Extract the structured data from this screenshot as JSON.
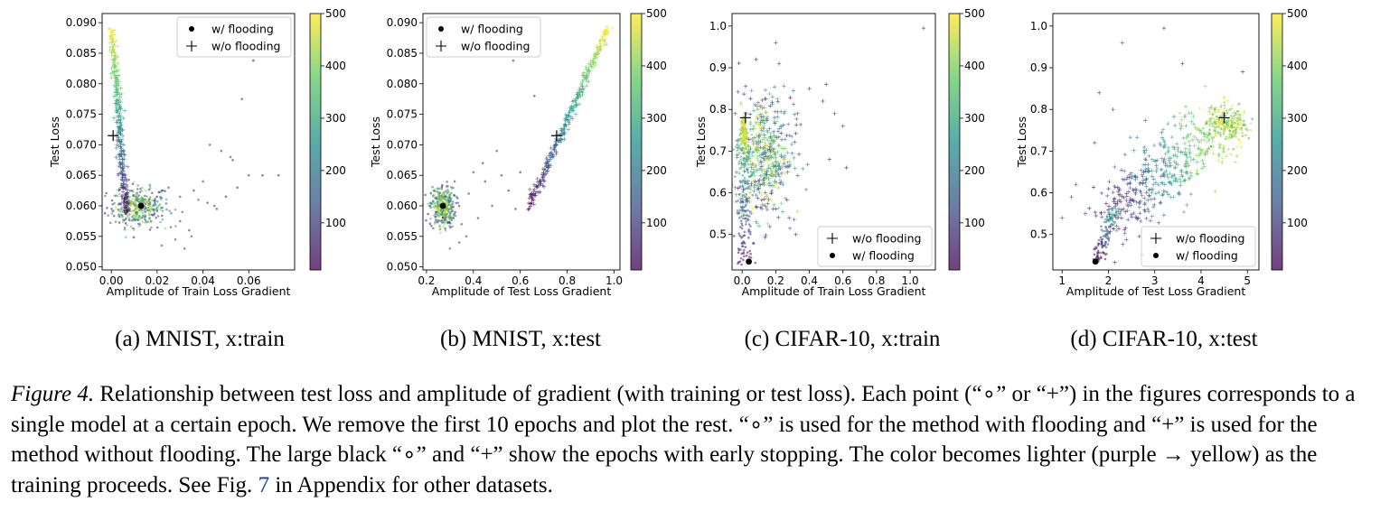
{
  "figure": {
    "caption": {
      "label": "Figure 4.",
      "text_1": " Relationship between test loss and amplitude of gradient (with training or test loss). Each point (“∘” or “+”) in the figures corresponds to a single model at a certain epoch. We remove the first 10 epochs and plot the rest. “∘” is used for the method with flooding and “+” is used for the method without flooding. The large black “∘” and “+” show the epochs with early stopping. The color becomes lighter (purple → yellow) as the training proceeds. See Fig. ",
      "ref": "7",
      "text_2": " in Appendix for other datasets."
    },
    "colormap": {
      "name": "viridis",
      "stops": [
        "#440154",
        "#3b528b",
        "#21918c",
        "#5ec962",
        "#fde725"
      ],
      "alpha": 0.55,
      "early_stop_color": "#000000"
    }
  },
  "chart_data": [
    {
      "type": "scatter",
      "subcaption": "(a) MNIST, x:train",
      "xlabel": "Amplitude of Train Loss Gradient",
      "ylabel": "Test Loss",
      "xlim": [
        -0.004,
        0.08
      ],
      "ylim": [
        0.0495,
        0.0915
      ],
      "xticks": [
        0.0,
        0.02,
        0.04,
        0.06
      ],
      "xtick_labels": [
        "0.00",
        "0.02",
        "0.04",
        "0.06"
      ],
      "yticks": [
        0.05,
        0.055,
        0.06,
        0.065,
        0.07,
        0.075,
        0.08,
        0.085,
        0.09
      ],
      "ytick_labels": [
        "0.050",
        "0.055",
        "0.060",
        "0.065",
        "0.070",
        "0.075",
        "0.080",
        "0.085",
        "0.090"
      ],
      "colorbar": {
        "ticks": [
          100,
          200,
          300,
          400,
          500
        ],
        "tick_labels": [
          "100",
          "200",
          "300",
          "400",
          "500"
        ],
        "range": [
          10,
          500
        ]
      },
      "legend": {
        "location": "upper right",
        "entries": [
          {
            "marker": "dot",
            "label": "w/ flooding"
          },
          {
            "marker": "plus",
            "label": "w/o flooding"
          }
        ]
      },
      "grid": false,
      "series": [
        {
          "name": "w/ flooding",
          "marker": "dot",
          "clusters": [
            {
              "epochs": [
                10,
                500
              ],
              "center": [
                0.012,
                0.0598
              ],
              "spread": [
                0.006,
                0.0016
              ],
              "count": 380
            }
          ],
          "paths": [],
          "points": [
            [
              0.03,
              0.0575,
              80
            ],
            [
              0.034,
              0.056,
              60
            ],
            [
              0.038,
              0.061,
              90
            ],
            [
              0.025,
              0.063,
              70
            ],
            [
              0.045,
              0.06,
              50
            ],
            [
              0.05,
              0.0615,
              40
            ],
            [
              0.055,
              0.063,
              30
            ],
            [
              0.06,
              0.065,
              45
            ],
            [
              0.066,
              0.065,
              35
            ],
            [
              0.073,
              0.065,
              25
            ],
            [
              0.048,
              0.069,
              55
            ],
            [
              0.052,
              0.068,
              65
            ],
            [
              0.043,
              0.07,
              40
            ],
            [
              0.057,
              0.0775,
              30
            ],
            [
              0.062,
              0.0838,
              20
            ],
            [
              0.04,
              0.064,
              75
            ],
            [
              0.035,
              0.055,
              85
            ],
            [
              0.028,
              0.0545,
              95
            ],
            [
              0.032,
              0.053,
              70
            ],
            [
              0.022,
              0.0535,
              110
            ],
            [
              0.026,
              0.0565,
              120
            ],
            [
              0.031,
              0.059,
              100
            ],
            [
              0.036,
              0.0625,
              60
            ],
            [
              0.046,
              0.0595,
              45
            ],
            [
              0.053,
              0.0675,
              35
            ],
            [
              0.042,
              0.0605,
              50
            ],
            [
              0.03,
              0.0615,
              105
            ]
          ],
          "early_stop": [
            0.013,
            0.06
          ]
        },
        {
          "name": "w/o flooding",
          "marker": "plus",
          "clusters": [],
          "paths": [
            {
              "epochs": [
                10,
                500
              ],
              "from": [
                0.0065,
                0.0588
              ],
              "to": [
                0.0002,
                0.0892
              ],
              "jitter": [
                0.0009,
                0.0002
              ],
              "count": 290
            }
          ],
          "points": [],
          "early_stop": [
            0.0008,
            0.0715
          ]
        }
      ]
    },
    {
      "type": "scatter",
      "subcaption": "(b) MNIST, x:test",
      "xlabel": "Amplitude of Test Loss Gradient",
      "ylabel": "Test Loss",
      "xlim": [
        0.185,
        1.025
      ],
      "ylim": [
        0.0495,
        0.0915
      ],
      "xticks": [
        0.2,
        0.4,
        0.6,
        0.8,
        1.0
      ],
      "xtick_labels": [
        "0.2",
        "0.4",
        "0.6",
        "0.8",
        "1.0"
      ],
      "yticks": [
        0.05,
        0.055,
        0.06,
        0.065,
        0.07,
        0.075,
        0.08,
        0.085,
        0.09
      ],
      "ytick_labels": [
        "0.050",
        "0.055",
        "0.060",
        "0.065",
        "0.070",
        "0.075",
        "0.080",
        "0.085",
        "0.090"
      ],
      "colorbar": {
        "ticks": [
          100,
          200,
          300,
          400,
          500
        ],
        "tick_labels": [
          "100",
          "200",
          "300",
          "400",
          "500"
        ],
        "range": [
          10,
          500
        ]
      },
      "legend": {
        "location": "upper left",
        "entries": [
          {
            "marker": "dot",
            "label": "w/ flooding"
          },
          {
            "marker": "plus",
            "label": "w/o flooding"
          }
        ]
      },
      "grid": false,
      "series": [
        {
          "name": "w/ flooding",
          "marker": "dot",
          "clusters": [
            {
              "epochs": [
                10,
                500
              ],
              "center": [
                0.27,
                0.0598
              ],
              "spread": [
                0.025,
                0.0016
              ],
              "count": 380
            }
          ],
          "paths": [],
          "points": [
            [
              0.35,
              0.057,
              80
            ],
            [
              0.38,
              0.062,
              70
            ],
            [
              0.42,
              0.058,
              60
            ],
            [
              0.45,
              0.064,
              50
            ],
            [
              0.48,
              0.06,
              55
            ],
            [
              0.52,
              0.065,
              40
            ],
            [
              0.55,
              0.0625,
              45
            ],
            [
              0.6,
              0.0655,
              35
            ],
            [
              0.44,
              0.067,
              50
            ],
            [
              0.4,
              0.0655,
              60
            ],
            [
              0.57,
              0.0838,
              25
            ],
            [
              0.66,
              0.078,
              30
            ],
            [
              0.34,
              0.054,
              90
            ],
            [
              0.3,
              0.053,
              110
            ],
            [
              0.37,
              0.055,
              85
            ],
            [
              0.32,
              0.064,
              95
            ],
            [
              0.5,
              0.069,
              45
            ],
            [
              0.58,
              0.0595,
              40
            ]
          ],
          "early_stop": [
            0.27,
            0.06
          ]
        },
        {
          "name": "w/o flooding",
          "marker": "plus",
          "clusters": [],
          "paths": [
            {
              "epochs": [
                10,
                500
              ],
              "from": [
                0.64,
                0.06
              ],
              "to": [
                0.975,
                0.0892
              ],
              "jitter": [
                0.008,
                0.00035
              ],
              "count": 300
            }
          ],
          "points": [],
          "early_stop": [
            0.755,
            0.0715
          ]
        }
      ]
    },
    {
      "type": "scatter",
      "subcaption": "(c) CIFAR-10, x:train",
      "xlabel": "Amplitude of Train Loss Gradient",
      "ylabel": "Test Loss",
      "xlim": [
        -0.06,
        1.15
      ],
      "ylim": [
        0.415,
        1.03
      ],
      "xticks": [
        0.0,
        0.2,
        0.4,
        0.6,
        0.8,
        1.0
      ],
      "xtick_labels": [
        "0.0",
        "0.2",
        "0.4",
        "0.6",
        "0.8",
        "1.0"
      ],
      "yticks": [
        0.5,
        0.6,
        0.7,
        0.8,
        0.9,
        1.0
      ],
      "ytick_labels": [
        "0.5",
        "0.6",
        "0.7",
        "0.8",
        "0.9",
        "1.0"
      ],
      "colorbar": {
        "ticks": [
          100,
          200,
          300,
          400,
          500
        ],
        "tick_labels": [
          "100",
          "200",
          "300",
          "400",
          "500"
        ],
        "range": [
          10,
          500
        ]
      },
      "legend": {
        "location": "lower right",
        "entries": [
          {
            "marker": "plus",
            "label": "w/o flooding"
          },
          {
            "marker": "dot",
            "label": "w/ flooding"
          }
        ]
      },
      "grid": false,
      "series": [
        {
          "name": "w/o flooding",
          "marker": "plus",
          "clusters": [
            {
              "epochs": [
                10,
                500
              ],
              "center": [
                0.13,
                0.69
              ],
              "spread": [
                0.085,
                0.075
              ],
              "count": 500
            }
          ],
          "points": [
            [
              0.2,
              0.96,
              60
            ],
            [
              1.08,
              0.995,
              30
            ],
            [
              0.22,
              0.91,
              40
            ],
            [
              0.55,
              0.79,
              50
            ],
            [
              0.6,
              0.76,
              45
            ],
            [
              0.5,
              0.86,
              35
            ],
            [
              0.48,
              0.82,
              55
            ],
            [
              0.4,
              0.85,
              70
            ],
            [
              0.52,
              0.68,
              40
            ],
            [
              0.62,
              0.66,
              35
            ],
            [
              0.32,
              0.5,
              60
            ],
            [
              0.28,
              0.54,
              65
            ]
          ],
          "paths": [],
          "early_stop": [
            0.02,
            0.78
          ]
        },
        {
          "name": "w/ flooding",
          "marker": "dot",
          "clusters": [
            {
              "epochs": [
                380,
                500
              ],
              "center": [
                0.01,
                0.745
              ],
              "spread": [
                0.008,
                0.02
              ],
              "count": 120
            }
          ],
          "paths": [
            {
              "epochs": [
                10,
                380
              ],
              "from": [
                0.01,
                0.44
              ],
              "to": [
                0.01,
                0.74
              ],
              "jitter": [
                0.025,
                0.02
              ],
              "count": 180
            }
          ],
          "points": [],
          "early_stop": [
            0.04,
            0.435
          ]
        }
      ]
    },
    {
      "type": "scatter",
      "subcaption": "(d) CIFAR-10, x:test",
      "xlabel": "Amplitude of Test Loss Gradient",
      "ylabel": "Test Loss",
      "xlim": [
        0.8,
        5.25
      ],
      "ylim": [
        0.415,
        1.03
      ],
      "xticks": [
        1,
        2,
        3,
        4,
        5
      ],
      "xtick_labels": [
        "1",
        "2",
        "3",
        "4",
        "5"
      ],
      "yticks": [
        0.5,
        0.6,
        0.7,
        0.8,
        0.9,
        1.0
      ],
      "ytick_labels": [
        "0.5",
        "0.6",
        "0.7",
        "0.8",
        "0.9",
        "1.0"
      ],
      "colorbar": {
        "ticks": [
          100,
          200,
          300,
          400,
          500
        ],
        "tick_labels": [
          "100",
          "200",
          "300",
          "400",
          "500"
        ],
        "range": [
          10,
          500
        ]
      },
      "legend": {
        "location": "lower right",
        "entries": [
          {
            "marker": "plus",
            "label": "w/o flooding"
          },
          {
            "marker": "dot",
            "label": "w/ flooding"
          }
        ]
      },
      "grid": false,
      "series": [
        {
          "name": "w/o flooding",
          "marker": "plus",
          "clusters": [],
          "paths": [
            {
              "epochs": [
                10,
                500
              ],
              "from": [
                2.0,
                0.55
              ],
              "to": [
                4.6,
                0.78
              ],
              "jitter": [
                0.25,
                0.045
              ],
              "count": 480
            }
          ],
          "points": [
            [
              2.3,
              0.96,
              60
            ],
            [
              3.2,
              0.995,
              30
            ],
            [
              4.9,
              0.89,
              40
            ],
            [
              1.3,
              0.62,
              80
            ],
            [
              1.2,
              0.59,
              90
            ],
            [
              1.8,
              0.84,
              70
            ],
            [
              1.7,
              0.72,
              75
            ],
            [
              3.6,
              0.91,
              50
            ],
            [
              2.1,
              0.8,
              65
            ],
            [
              1.5,
              0.55,
              85
            ],
            [
              1.0,
              0.54,
              95
            ],
            [
              3.0,
              0.47,
              40
            ]
          ],
          "early_stop": [
            4.5,
            0.78
          ]
        },
        {
          "name": "w/ flooding",
          "marker": "dot",
          "clusters": [
            {
              "epochs": [
                300,
                500
              ],
              "center": [
                4.6,
                0.76
              ],
              "spread": [
                0.25,
                0.018
              ],
              "count": 200
            }
          ],
          "paths": [
            {
              "epochs": [
                10,
                300
              ],
              "from": [
                1.75,
                0.44
              ],
              "to": [
                2.15,
                0.56
              ],
              "jitter": [
                0.06,
                0.012
              ],
              "count": 120
            }
          ],
          "points": [],
          "early_stop": [
            1.72,
            0.435
          ]
        }
      ]
    }
  ]
}
